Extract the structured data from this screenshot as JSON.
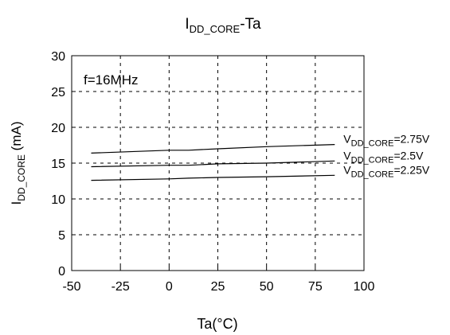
{
  "chart_data": {
    "type": "line",
    "title": {
      "main": "I",
      "sub": "DD_CORE",
      "rest": "-Ta"
    },
    "xlabel": "Ta(°C)",
    "ylabel": {
      "main": "I",
      "sub": "DD_CORE",
      "rest": " (mA)"
    },
    "annotation": "f=16MHz",
    "xlim": [
      -50,
      100
    ],
    "ylim": [
      0,
      30
    ],
    "xticks": [
      -50,
      -25,
      0,
      25,
      50,
      75,
      100
    ],
    "yticks": [
      0,
      5,
      10,
      15,
      20,
      25,
      30
    ],
    "grid": true,
    "series": [
      {
        "label_main": "V",
        "label_sub": "DD_CORE",
        "label_rest": "=2.75V",
        "x": [
          -40,
          0,
          10,
          25,
          50,
          85
        ],
        "y": [
          16.4,
          16.8,
          16.8,
          17.0,
          17.3,
          17.6
        ]
      },
      {
        "label_main": "V",
        "label_sub": "DD_CORE",
        "label_rest": "=2.5V",
        "x": [
          -40,
          0,
          10,
          25,
          50,
          85
        ],
        "y": [
          14.5,
          14.7,
          14.7,
          14.9,
          15.0,
          15.3
        ]
      },
      {
        "label_main": "V",
        "label_sub": "DD_CORE",
        "label_rest": "=2.25V",
        "x": [
          -40,
          0,
          10,
          25,
          50,
          85
        ],
        "y": [
          12.6,
          12.8,
          12.9,
          13.0,
          13.1,
          13.3
        ]
      }
    ]
  }
}
